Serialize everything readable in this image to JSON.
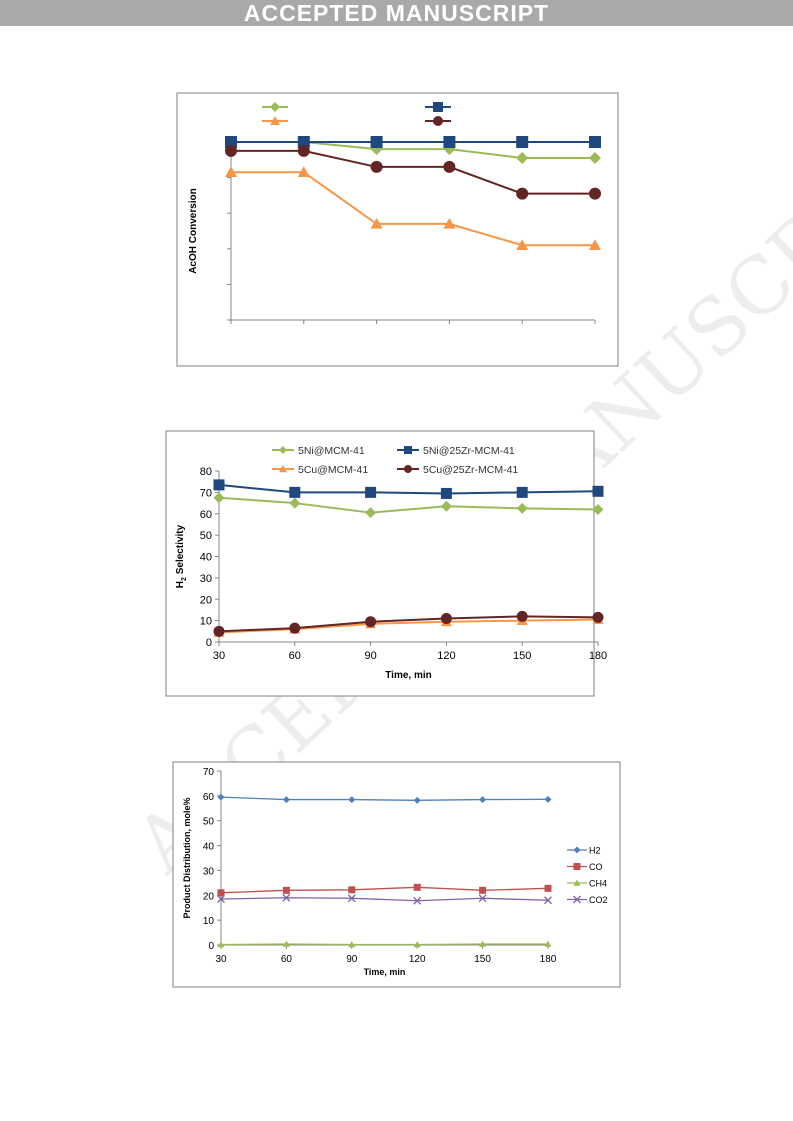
{
  "banner": "ACCEPTED MANUSCRIPT",
  "watermark": "ACCEPTED MANUSCRIPT",
  "colors": {
    "ni_mcm": "#9bbb59",
    "ni_zr": "#1f497d",
    "cu_mcm": "#f79646",
    "cu_zr": "#632523",
    "h2": "#4f81bd",
    "co": "#c0504d",
    "ch4": "#9bbb59",
    "co2": "#8064a2"
  },
  "chart_data": [
    {
      "type": "line",
      "ylabel": "AcOH Conversion",
      "xlabel": "",
      "x": [
        30,
        60,
        90,
        120,
        150,
        180
      ],
      "ylim": [
        0,
        100
      ],
      "tick_labels_visible": false,
      "series": [
        {
          "name": "",
          "marker": "diamond",
          "color": "#9bbb59",
          "values": [
            100,
            100,
            96,
            96,
            91,
            91
          ]
        },
        {
          "name": "",
          "marker": "square",
          "color": "#1f497d",
          "values": [
            100,
            100,
            100,
            100,
            100,
            100
          ]
        },
        {
          "name": "",
          "marker": "triangle",
          "color": "#f79646",
          "values": [
            83,
            83,
            54,
            54,
            42,
            42
          ]
        },
        {
          "name": "",
          "marker": "circle",
          "color": "#632523",
          "values": [
            95,
            95,
            86,
            86,
            71,
            71
          ]
        }
      ]
    },
    {
      "type": "line",
      "ylabel": "H2 Selectivity",
      "xlabel": "Time, min",
      "x": [
        30,
        60,
        90,
        120,
        150,
        180
      ],
      "x_ticks": [
        "30",
        "60",
        "90",
        "120",
        "150",
        "180"
      ],
      "y_ticks": [
        "0",
        "10",
        "20",
        "30",
        "40",
        "50",
        "60",
        "70",
        "80"
      ],
      "ylim": [
        0,
        80
      ],
      "legend": "top",
      "series": [
        {
          "name": "5Ni@MCM-41",
          "marker": "diamond",
          "color": "#9bbb59",
          "values": [
            67.5,
            65,
            60.5,
            63.5,
            62.5,
            62
          ]
        },
        {
          "name": "5Ni@25Zr-MCM-41",
          "marker": "square",
          "color": "#1f497d",
          "values": [
            73.5,
            70,
            70,
            69.5,
            70,
            70.5
          ]
        },
        {
          "name": "5Cu@MCM-41",
          "marker": "triangle",
          "color": "#f79646",
          "values": [
            4.5,
            6,
            8.5,
            9.5,
            10,
            10.5
          ]
        },
        {
          "name": "5Cu@25Zr-MCM-41",
          "marker": "circle",
          "color": "#632523",
          "values": [
            5,
            6.5,
            9.5,
            11,
            12,
            11.5
          ]
        }
      ]
    },
    {
      "type": "line",
      "ylabel": "Product Distribution, mole%",
      "xlabel": "Time, min",
      "x": [
        30,
        60,
        90,
        120,
        150,
        180
      ],
      "x_ticks": [
        "30",
        "60",
        "90",
        "120",
        "150",
        "180"
      ],
      "y_ticks": [
        "0",
        "10",
        "20",
        "30",
        "40",
        "50",
        "60",
        "70"
      ],
      "ylim": [
        0,
        70
      ],
      "legend": "right",
      "series": [
        {
          "name": "H2",
          "marker": "diamond",
          "color": "#4f81bd",
          "values": [
            59.5,
            58.5,
            58.5,
            58.2,
            58.5,
            58.6
          ]
        },
        {
          "name": "CO",
          "marker": "square",
          "color": "#c0504d",
          "values": [
            21,
            22,
            22.2,
            23.2,
            22,
            22.8
          ]
        },
        {
          "name": "CH4",
          "marker": "triangle",
          "color": "#9bbb59",
          "values": [
            0.2,
            0.4,
            0.2,
            0.2,
            0.4,
            0.4
          ]
        },
        {
          "name": "CO2",
          "marker": "cross",
          "color": "#8064a2",
          "values": [
            18.5,
            19,
            18.8,
            17.8,
            18.8,
            18
          ]
        }
      ]
    }
  ]
}
